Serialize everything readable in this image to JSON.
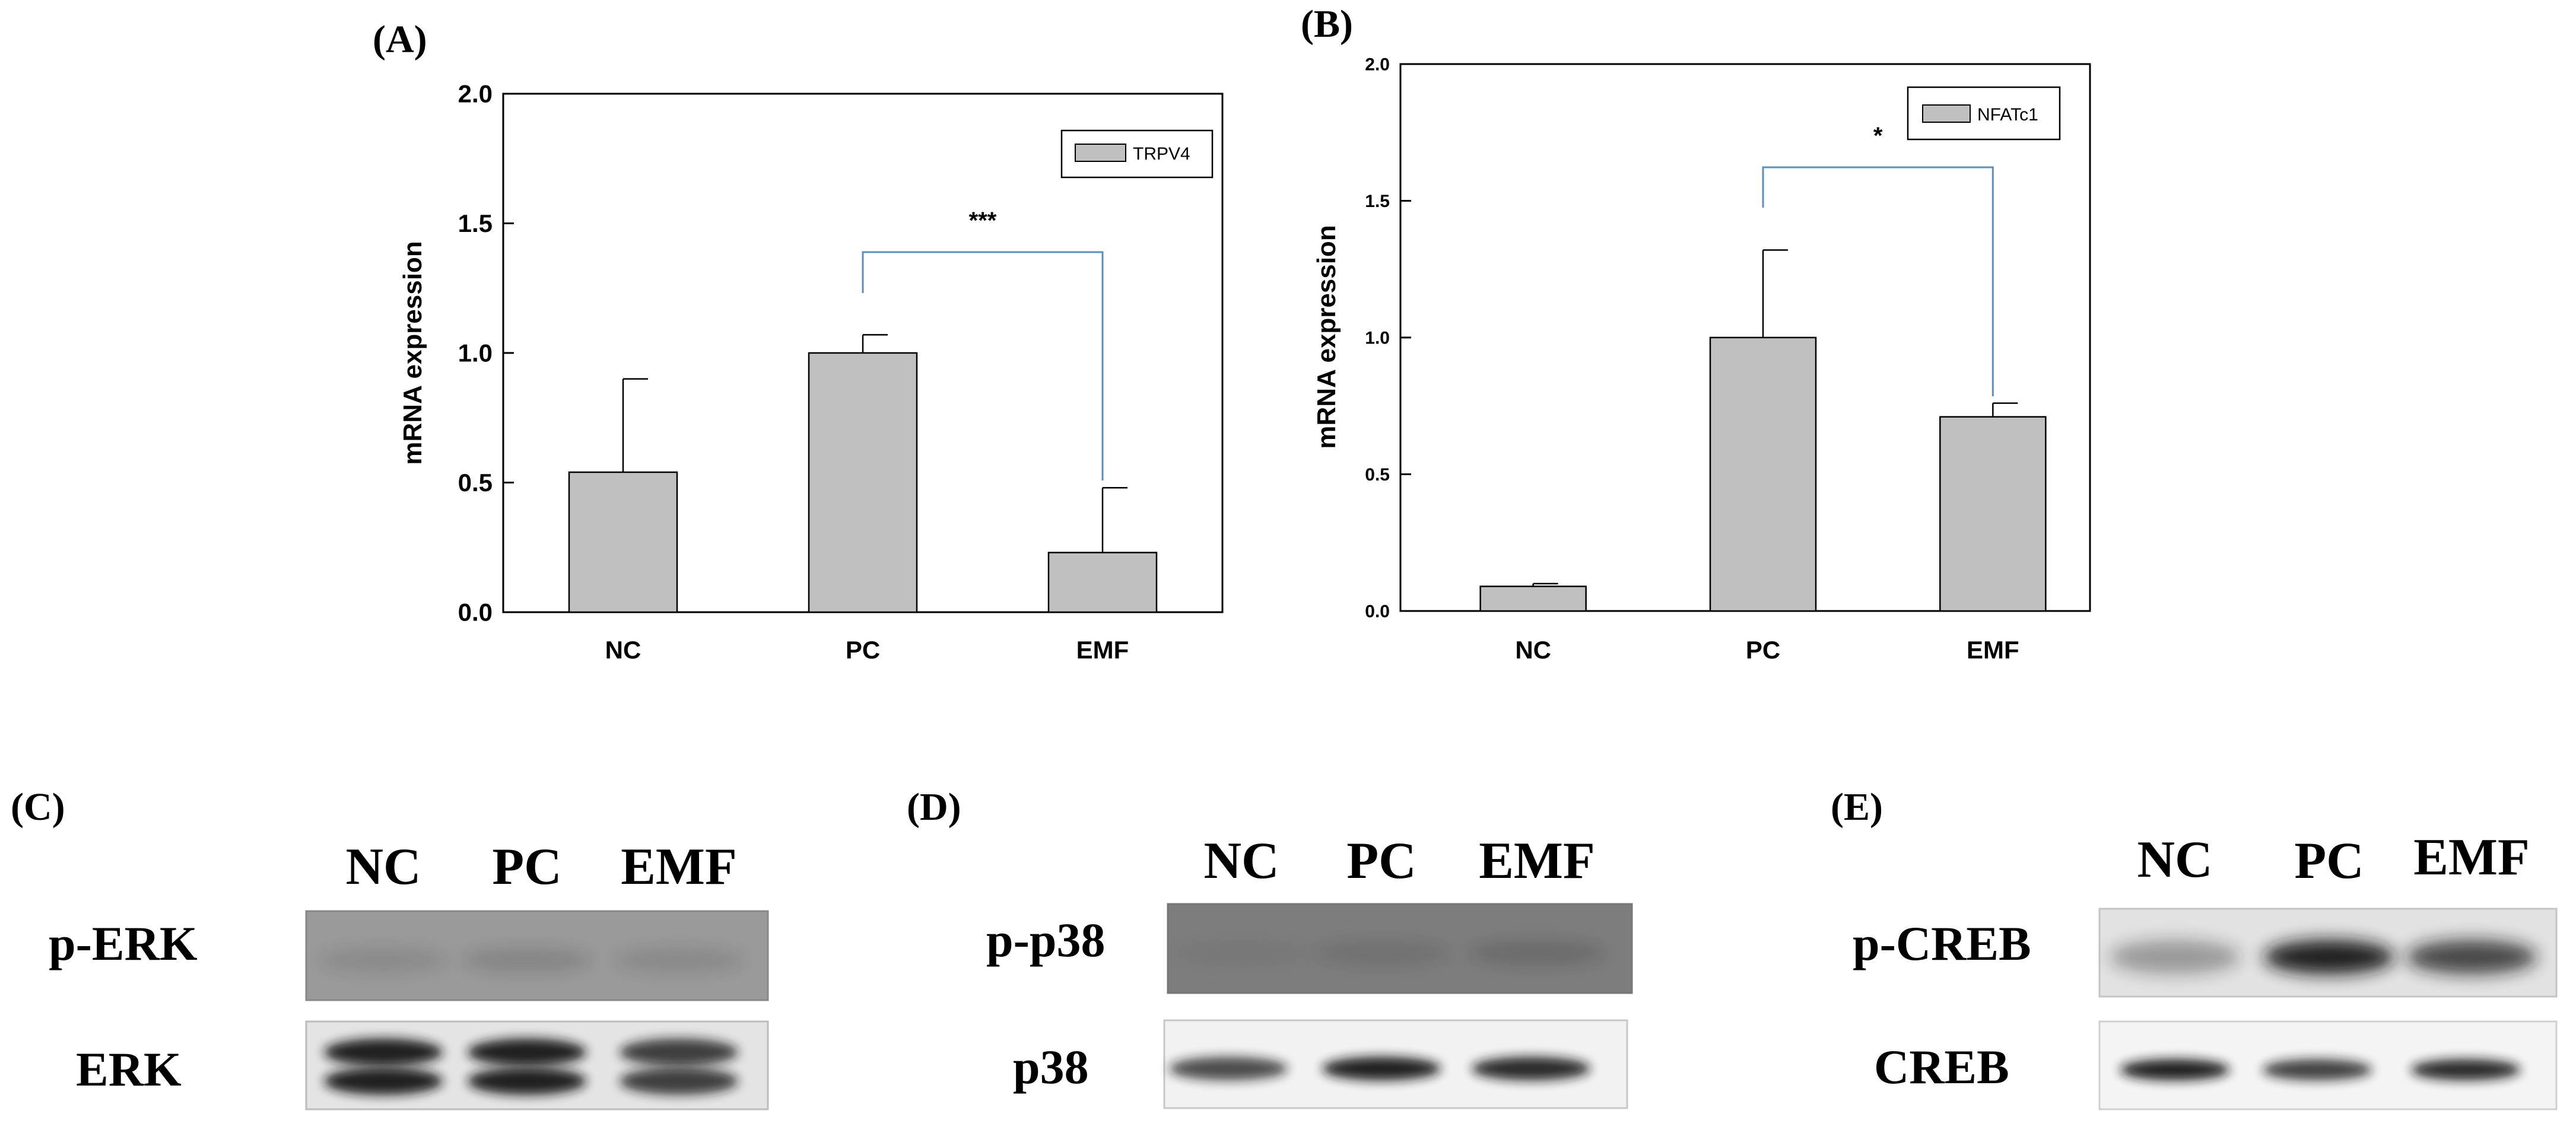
{
  "chart_data": [
    {
      "panel": "(A)",
      "type": "bar",
      "categories": [
        "NC",
        "PC",
        "EMF"
      ],
      "series": [
        {
          "name": "TRPV4",
          "values": [
            0.54,
            1.0,
            0.23
          ],
          "errors": [
            0.36,
            0.07,
            0.25
          ]
        }
      ],
      "ylabel": "mRNA expression",
      "ylim": [
        0,
        2.0
      ],
      "yticks": [
        "0.0",
        "0.5",
        "1.0",
        "1.5",
        "2.0"
      ],
      "legend_position": "top-right",
      "grid": false,
      "significance": {
        "from": "PC",
        "to": "EMF",
        "label": "***"
      },
      "colors": {
        "bar": "#c0c0c0",
        "bracket": "#5b8fc0"
      }
    },
    {
      "panel": "(B)",
      "type": "bar",
      "categories": [
        "NC",
        "PC",
        "EMF"
      ],
      "series": [
        {
          "name": "NFATc1",
          "values": [
            0.09,
            1.0,
            0.71
          ],
          "errors": [
            0.01,
            0.32,
            0.05
          ]
        }
      ],
      "ylabel": "mRNA expression",
      "ylim": [
        0,
        2.0
      ],
      "yticks": [
        "0.0",
        "0.5",
        "1.0",
        "1.5",
        "2.0"
      ],
      "legend_position": "top-right",
      "grid": false,
      "significance": {
        "from": "PC",
        "to": "EMF",
        "label": "*"
      },
      "colors": {
        "bar": "#c0c0c0",
        "bracket": "#5b8fc0"
      }
    }
  ],
  "blots": [
    {
      "panel": "(C)",
      "lanes": [
        "NC",
        "PC",
        "EMF"
      ],
      "rows": [
        {
          "label": "p-ERK",
          "intensity": [
            0.12,
            0.16,
            0.13
          ]
        },
        {
          "label": "ERK",
          "intensity": [
            0.95,
            0.95,
            0.8
          ]
        }
      ]
    },
    {
      "panel": "(D)",
      "lanes": [
        "NC",
        "PC",
        "EMF"
      ],
      "rows": [
        {
          "label": "p-p38",
          "intensity": [
            0.05,
            0.12,
            0.18
          ]
        },
        {
          "label": "p38",
          "intensity": [
            0.75,
            0.95,
            0.9
          ]
        }
      ]
    },
    {
      "panel": "(E)",
      "lanes": [
        "NC",
        "PC",
        "EMF"
      ],
      "rows": [
        {
          "label": "p-CREB",
          "intensity": [
            0.35,
            0.95,
            0.75
          ]
        },
        {
          "label": "CREB",
          "intensity": [
            0.95,
            0.8,
            0.9
          ]
        }
      ]
    }
  ]
}
